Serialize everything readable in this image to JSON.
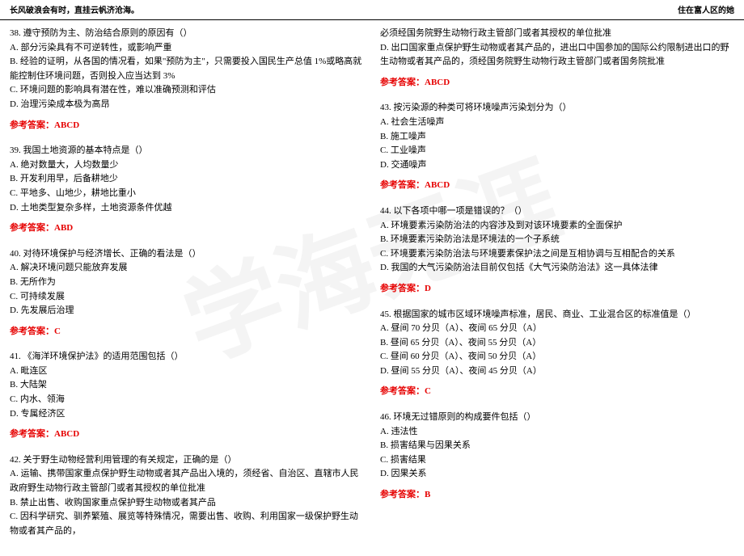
{
  "header": {
    "left": "长风破浪会有时，直挂云帆济沧海。",
    "right": "住在富人区的她"
  },
  "watermark_text": "学海无涯",
  "answer_label": "参考答案：",
  "colors": {
    "answer": "#e60000",
    "text": "#000000",
    "background": "#ffffff"
  },
  "left_column": [
    {
      "stem": "38. 遵守预防为主、防治结合原则的原因有（）",
      "options": [
        "A. 部分污染具有不可逆转性，或影响严重",
        "B. 经验的证明，从各国的情况看，如果\"预防为主\"，只需要投入国民生产总值 1%或略高就能控制住环境问题，否则投入应当达到 3%",
        "C. 环境问题的影响具有潜在性，难以准确预测和评估",
        "D. 治理污染成本极为高昂"
      ],
      "answer": "ABCD"
    },
    {
      "stem": "39. 我国土地资源的基本特点是（）",
      "options": [
        "A. 绝对数量大，人均数量少",
        "B. 开发利用早，后备耕地少",
        "C. 平地多、山地少，耕地比重小",
        "D. 土地类型复杂多样，土地资源条件优越"
      ],
      "answer": "ABD"
    },
    {
      "stem": "40. 对待环境保护与经济增长、正确的看法是（）",
      "options": [
        "A. 解决环境问题只能放弃发展",
        "B. 无所作为",
        "C. 可持续发展",
        "D. 先发展后治理"
      ],
      "answer": "C"
    },
    {
      "stem": "41. 《海洋环境保护法》的适用范围包括（）",
      "options": [
        "A. 毗连区",
        "B. 大陆架",
        "C. 内水、领海",
        "D. 专属经济区"
      ],
      "answer": "ABCD"
    },
    {
      "stem": "42. 关于野生动物经营利用管理的有关规定，正确的是（）",
      "options": [
        "A. 运输、携带国家重点保护野生动物或者其产品出入境的，须经省、自治区、直辖市人民政府野生动物行政主管部门或者其授权的单位批准",
        "B. 禁止出售、收购国家重点保护野生动物或者其产品",
        "C. 因科学研究、驯养繁殖、展览等特殊情况，需要出售、收购、利用国家一级保护野生动物或者其产品的，"
      ],
      "answer": null
    }
  ],
  "right_column_continuation": [
    "必须经国务院野生动物行政主管部门或者其授权的单位批准",
    "D. 出口国家重点保护野生动物或者其产品的，进出口中国参加的国际公约限制进出口的野生动物或者其产品的，须经国务院野生动物行政主管部门或者国务院批准"
  ],
  "right_column_cont_answer": "ABCD",
  "right_column": [
    {
      "stem": "43. 按污染源的种类可将环境噪声污染划分为（）",
      "options": [
        "A. 社会生活噪声",
        "B. 施工噪声",
        "C. 工业噪声",
        "D. 交通噪声"
      ],
      "answer": "ABCD"
    },
    {
      "stem": "44. 以下各项中哪一项是错误的？（）",
      "options": [
        "A. 环境要素污染防治法的内容涉及到对该环境要素的全面保护",
        "B. 环境要素污染防治法是环境法的一个子系统",
        "C. 环境要素污染防治法与环境要素保护法之间是互相协调与互相配合的关系",
        "D. 我国的大气污染防治法目前仅包括《大气污染防治法》这一具体法律"
      ],
      "answer": "D"
    },
    {
      "stem": "45. 根据国家的城市区域环境噪声标准，居民、商业、工业混合区的标准值是（）",
      "options": [
        "A. 昼间 70 分贝（A）、夜间 65 分贝（A）",
        "B. 昼间 65 分贝（A）、夜间 55 分贝（A）",
        "C. 昼间 60 分贝（A）、夜间 50 分贝（A）",
        "D. 昼间 55 分贝（A）、夜间 45 分贝（A）"
      ],
      "answer": "C"
    },
    {
      "stem": "46. 环境无过错原则的构成要件包括（）",
      "options": [
        "A. 违法性",
        "B. 损害结果与因果关系",
        "C. 损害结果",
        "D. 因果关系"
      ],
      "answer": "B"
    }
  ]
}
